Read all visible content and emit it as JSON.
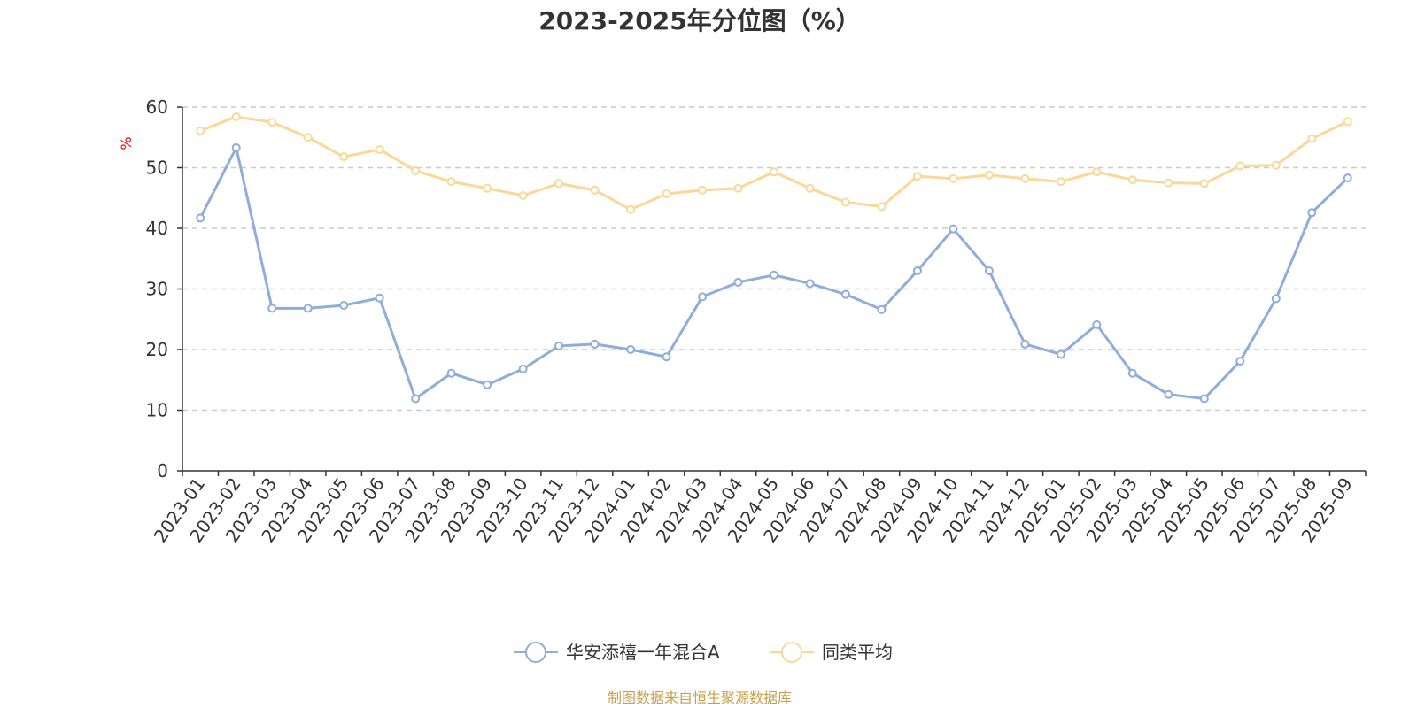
{
  "colors": {
    "series_a": "#8eaed9",
    "series_b": "#fbd897",
    "unit_label": "#ff0000",
    "source_text": "#c8a04a",
    "grid": "#cccccc",
    "axis": "#333333"
  },
  "chart_data": {
    "type": "line",
    "title": "2023-2025年分位图（%）",
    "ylabel": "%",
    "ylim": [
      0,
      60
    ],
    "yticks": [
      "0",
      "10",
      "20",
      "30",
      "40",
      "50",
      "60"
    ],
    "grid": true,
    "legend_position": "bottom-center",
    "x": [
      "2023-01",
      "2023-02",
      "2023-03",
      "2023-04",
      "2023-05",
      "2023-06",
      "2023-07",
      "2023-08",
      "2023-09",
      "2023-10",
      "2023-11",
      "2023-12",
      "2024-01",
      "2024-02",
      "2024-03",
      "2024-04",
      "2024-05",
      "2024-06",
      "2024-07",
      "2024-08",
      "2024-09",
      "2024-10",
      "2024-11",
      "2024-12",
      "2025-01",
      "2025-02",
      "2025-03",
      "2025-04",
      "2025-05",
      "2025-06",
      "2025-07",
      "2025-08",
      "2025-09"
    ],
    "series": [
      {
        "name": "华安添禧一年混合A",
        "values": [
          41.7,
          53.3,
          26.8,
          26.8,
          27.3,
          28.5,
          11.9,
          16.1,
          14.2,
          16.8,
          20.6,
          20.9,
          20.0,
          18.8,
          28.7,
          31.1,
          32.3,
          30.9,
          29.1,
          26.6,
          33.0,
          39.9,
          33.0,
          20.9,
          19.2,
          24.1,
          16.1,
          12.6,
          11.9,
          18.1,
          28.4,
          42.6,
          48.3
        ]
      },
      {
        "name": "同类平均",
        "values": [
          56.1,
          58.4,
          57.5,
          55.0,
          51.8,
          53.0,
          49.5,
          47.7,
          46.6,
          45.4,
          47.4,
          46.3,
          43.1,
          45.7,
          46.3,
          46.6,
          49.3,
          46.6,
          44.3,
          43.6,
          48.6,
          48.2,
          48.8,
          48.2,
          47.7,
          49.3,
          48.0,
          47.5,
          47.4,
          50.3,
          50.4,
          54.8,
          57.6
        ]
      }
    ]
  },
  "footer": {
    "source": "制图数据来自恒生聚源数据库"
  }
}
